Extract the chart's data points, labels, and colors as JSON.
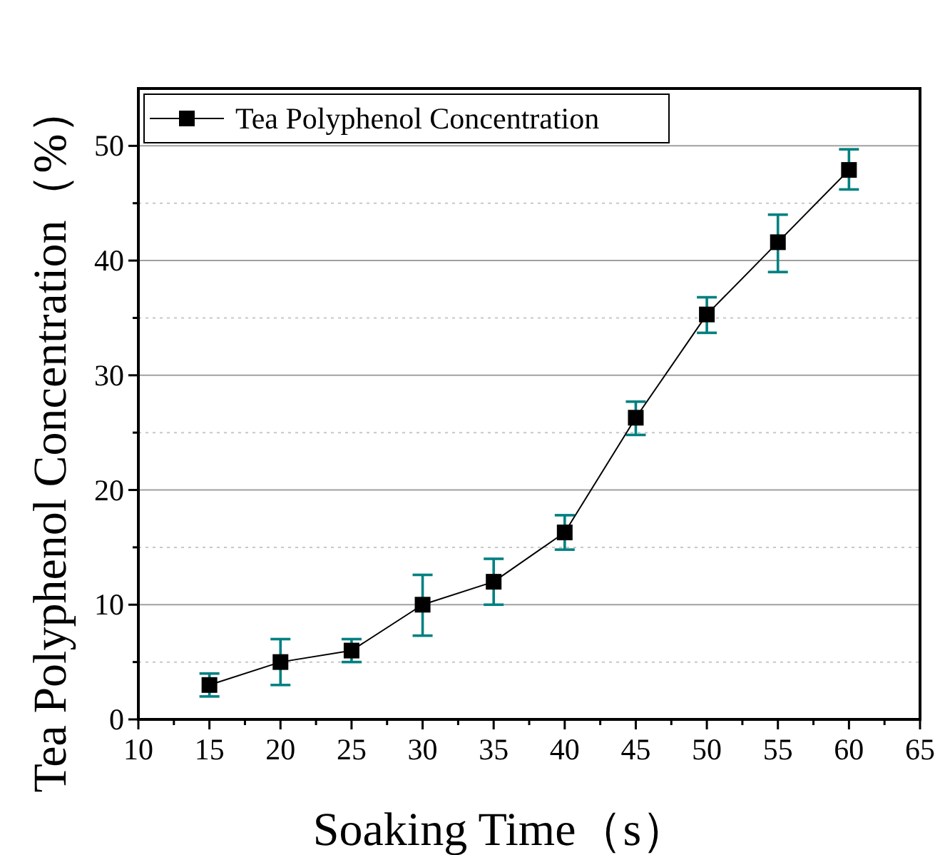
{
  "chart_data": {
    "type": "line",
    "xlabel": "Soaking Time（s）",
    "ylabel": "Tea Polyphenol Concentration（%）",
    "x": [
      15,
      20,
      25,
      30,
      35,
      40,
      45,
      50,
      55,
      60
    ],
    "series": [
      {
        "name": "Tea Polyphenol Concentration",
        "color": "#000000",
        "values": [
          3.0,
          5.0,
          6.0,
          10.0,
          12.0,
          16.3,
          26.3,
          35.3,
          41.6,
          47.9
        ],
        "errors": [
          [
            2.0,
            4.0
          ],
          [
            3.0,
            7.0
          ],
          [
            5.0,
            7.0
          ],
          [
            7.3,
            12.6
          ],
          [
            10.0,
            14.0
          ],
          [
            14.8,
            17.8
          ],
          [
            24.8,
            27.7
          ],
          [
            33.7,
            36.8
          ],
          [
            39.0,
            44.0
          ],
          [
            46.2,
            49.7
          ]
        ]
      }
    ],
    "xlim": [
      10,
      65
    ],
    "xticks": [
      10,
      {
        "value": 12.5,
        "label": null
      },
      15,
      {
        "value": 17.5,
        "label": null
      },
      20,
      {
        "value": 22.5,
        "label": null
      },
      25,
      {
        "value": 27.5,
        "label": null
      },
      30,
      {
        "value": 32.5,
        "label": null
      },
      35,
      {
        "value": 37.5,
        "label": null
      },
      40,
      {
        "value": 42.5,
        "label": null
      },
      45,
      {
        "value": 47.5,
        "label": null
      },
      50,
      {
        "value": 52.5,
        "label": null
      },
      55,
      {
        "value": 57.5,
        "label": null
      },
      60,
      {
        "value": 62.5,
        "label": null
      },
      65
    ],
    "ylim": [
      0,
      55
    ],
    "yticks": [
      0,
      {
        "value": 5,
        "label": null
      },
      10,
      {
        "value": 15,
        "label": null
      },
      20,
      {
        "value": 25,
        "label": null
      },
      30,
      {
        "value": 35,
        "label": null
      },
      40,
      {
        "value": 45,
        "label": null
      },
      50
    ],
    "grid": "y",
    "legend": "top left",
    "marker": "square",
    "line_style": "solid"
  }
}
